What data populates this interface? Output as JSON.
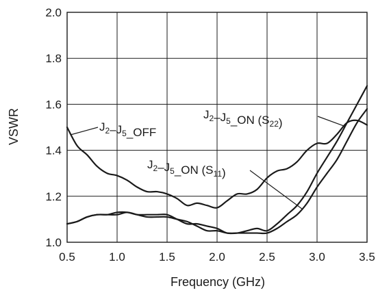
{
  "chart_data": {
    "type": "line",
    "title": "",
    "xlabel": "Frequency (GHz)",
    "ylabel": "VSWR",
    "xlim": [
      0.5,
      3.5
    ],
    "ylim": [
      1.0,
      2.0
    ],
    "xticks": [
      0.5,
      1.0,
      1.5,
      2.0,
      2.5,
      3.0,
      3.5
    ],
    "yticks": [
      1.0,
      1.2,
      1.4,
      1.6,
      1.8,
      2.0
    ],
    "xtick_labels": [
      "0.5",
      "1.0",
      "1.5",
      "2.0",
      "2.5",
      "3.0",
      "3.5"
    ],
    "ytick_labels": [
      "1.0",
      "1.2",
      "1.4",
      "1.6",
      "1.8",
      "2.0"
    ],
    "grid": true,
    "series": [
      {
        "name": "J2–J5_OFF",
        "x": [
          0.5,
          0.6,
          0.7,
          0.8,
          0.9,
          1.0,
          1.1,
          1.2,
          1.3,
          1.4,
          1.5,
          1.6,
          1.7,
          1.8,
          1.9,
          2.0,
          2.1,
          2.2,
          2.3,
          2.4,
          2.5,
          2.6,
          2.7,
          2.8,
          2.9,
          3.0,
          3.1,
          3.2,
          3.3,
          3.4,
          3.5
        ],
        "y": [
          1.5,
          1.42,
          1.38,
          1.33,
          1.3,
          1.29,
          1.27,
          1.24,
          1.22,
          1.22,
          1.21,
          1.19,
          1.16,
          1.17,
          1.16,
          1.15,
          1.18,
          1.21,
          1.21,
          1.23,
          1.28,
          1.31,
          1.32,
          1.35,
          1.4,
          1.43,
          1.43,
          1.47,
          1.52,
          1.53,
          1.51
        ]
      },
      {
        "name": "J2–J5_ON (S22)",
        "x": [
          0.5,
          0.6,
          0.7,
          0.8,
          0.9,
          1.0,
          1.1,
          1.2,
          1.3,
          1.4,
          1.5,
          1.6,
          1.7,
          1.8,
          1.9,
          2.0,
          2.1,
          2.2,
          2.3,
          2.4,
          2.5,
          2.6,
          2.7,
          2.8,
          2.9,
          3.0,
          3.1,
          3.2,
          3.3,
          3.4,
          3.5
        ],
        "y": [
          1.08,
          1.09,
          1.11,
          1.12,
          1.12,
          1.12,
          1.13,
          1.12,
          1.11,
          1.11,
          1.11,
          1.1,
          1.09,
          1.07,
          1.05,
          1.05,
          1.04,
          1.04,
          1.05,
          1.06,
          1.05,
          1.08,
          1.12,
          1.16,
          1.22,
          1.3,
          1.37,
          1.44,
          1.52,
          1.6,
          1.68
        ]
      },
      {
        "name": "J2–J5_ON (S11)",
        "x": [
          0.5,
          0.6,
          0.7,
          0.8,
          0.9,
          1.0,
          1.1,
          1.2,
          1.3,
          1.4,
          1.5,
          1.6,
          1.7,
          1.8,
          1.9,
          2.0,
          2.1,
          2.2,
          2.3,
          2.4,
          2.5,
          2.6,
          2.7,
          2.8,
          2.9,
          3.0,
          3.1,
          3.2,
          3.3,
          3.4,
          3.5
        ],
        "y": [
          1.08,
          1.09,
          1.11,
          1.12,
          1.12,
          1.13,
          1.13,
          1.12,
          1.12,
          1.12,
          1.12,
          1.1,
          1.08,
          1.08,
          1.07,
          1.06,
          1.04,
          1.04,
          1.04,
          1.04,
          1.04,
          1.06,
          1.09,
          1.12,
          1.17,
          1.24,
          1.3,
          1.36,
          1.44,
          1.52,
          1.58
        ]
      }
    ],
    "annotations": [
      {
        "id": "off",
        "parts": [
          [
            "J",
            ""
          ],
          [
            "2",
            "sub"
          ],
          [
            "–J",
            ""
          ],
          [
            "5",
            "sub"
          ],
          [
            "_OFF",
            ""
          ]
        ],
        "series": 0,
        "target_x": 0.54
      },
      {
        "id": "s22",
        "parts": [
          [
            "J",
            ""
          ],
          [
            "2",
            "sub"
          ],
          [
            "–J",
            ""
          ],
          [
            "5",
            "sub"
          ],
          [
            "_ON (S",
            ""
          ],
          [
            "22",
            "sub"
          ],
          [
            ")",
            ""
          ]
        ],
        "series": 1,
        "target_x": 3.28
      },
      {
        "id": "s11",
        "parts": [
          [
            "J",
            ""
          ],
          [
            "2",
            "sub"
          ],
          [
            "–J",
            ""
          ],
          [
            "5",
            "sub"
          ],
          [
            "_ON (S",
            ""
          ],
          [
            "11",
            "sub"
          ],
          [
            ")",
            ""
          ]
        ],
        "series": 2,
        "target_x": 2.85
      }
    ]
  }
}
